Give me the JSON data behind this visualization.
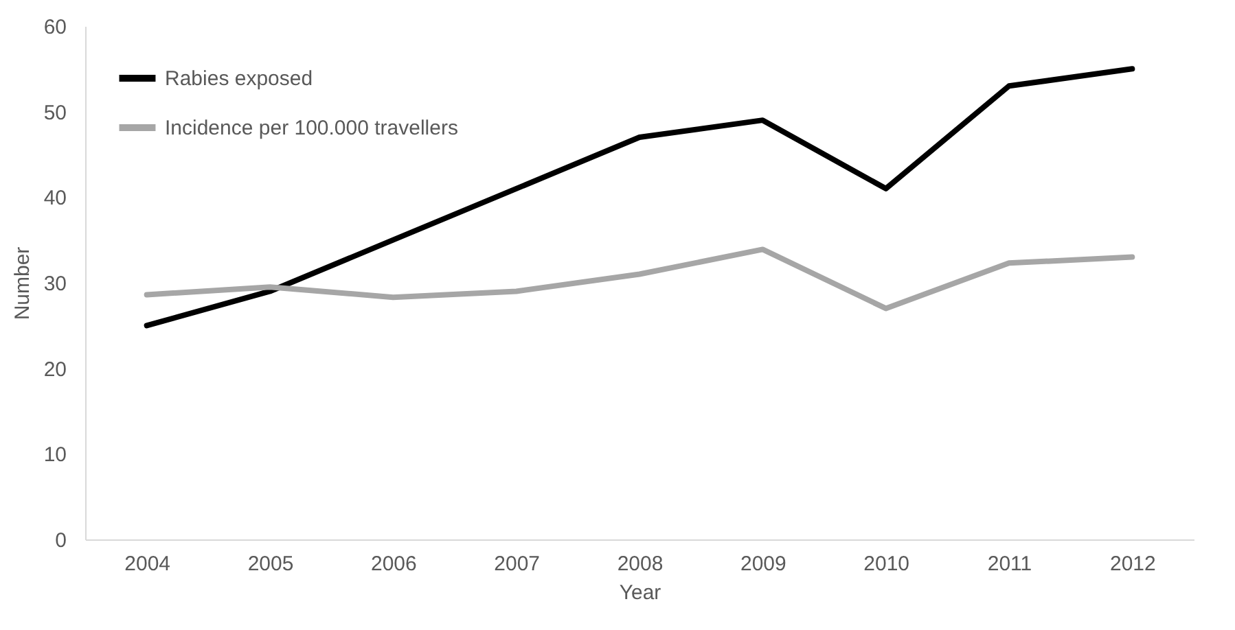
{
  "chart_data": {
    "type": "line",
    "xlabel": "Year",
    "ylabel": "Number",
    "categories": [
      "2004",
      "2005",
      "2006",
      "2007",
      "2008",
      "2009",
      "2010",
      "2011",
      "2012"
    ],
    "series": [
      {
        "name": "Rabies exposed",
        "color": "#000000",
        "values": [
          25,
          29,
          35,
          41,
          47,
          49,
          41,
          53,
          55
        ]
      },
      {
        "name": "Incidence per 100.000 travellers",
        "color": "#a6a6a6",
        "values": [
          28.6,
          29.5,
          28.3,
          29.0,
          31.0,
          33.9,
          27.0,
          32.3,
          33.0
        ]
      }
    ],
    "ylim": [
      0,
      60
    ],
    "yticks": [
      0,
      10,
      20,
      30,
      40,
      50,
      60
    ],
    "grid": false,
    "legend": "top left",
    "marker": "none",
    "line_style": "solid"
  }
}
